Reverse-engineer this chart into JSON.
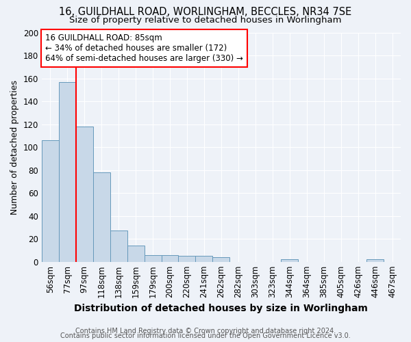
{
  "title": "16, GUILDHALL ROAD, WORLINGHAM, BECCLES, NR34 7SE",
  "subtitle": "Size of property relative to detached houses in Worlingham",
  "xlabel": "Distribution of detached houses by size in Worlingham",
  "ylabel": "Number of detached properties",
  "bar_color": "#c8d8e8",
  "bar_edge_color": "#6699bb",
  "background_color": "#eef2f8",
  "grid_color": "white",
  "categories": [
    "56sqm",
    "77sqm",
    "97sqm",
    "118sqm",
    "138sqm",
    "159sqm",
    "179sqm",
    "200sqm",
    "220sqm",
    "241sqm",
    "262sqm",
    "282sqm",
    "303sqm",
    "323sqm",
    "344sqm",
    "364sqm",
    "385sqm",
    "405sqm",
    "426sqm",
    "446sqm",
    "467sqm"
  ],
  "values": [
    106,
    157,
    118,
    78,
    27,
    14,
    6,
    6,
    5,
    5,
    4,
    0,
    0,
    0,
    2,
    0,
    0,
    0,
    0,
    2,
    0
  ],
  "red_line_x": 1.5,
  "annotation_line1": "16 GUILDHALL ROAD: 85sqm",
  "annotation_line2": "← 34% of detached houses are smaller (172)",
  "annotation_line3": "64% of semi-detached houses are larger (330) →",
  "ylim": [
    0,
    200
  ],
  "yticks": [
    0,
    20,
    40,
    60,
    80,
    100,
    120,
    140,
    160,
    180,
    200
  ],
  "footer_line1": "Contains HM Land Registry data © Crown copyright and database right 2024.",
  "footer_line2": "Contains public sector information licensed under the Open Government Licence v3.0.",
  "title_fontsize": 10.5,
  "subtitle_fontsize": 9.5,
  "xlabel_fontsize": 10,
  "ylabel_fontsize": 9,
  "tick_fontsize": 8.5,
  "footer_fontsize": 7,
  "ann_fontsize": 8.5
}
